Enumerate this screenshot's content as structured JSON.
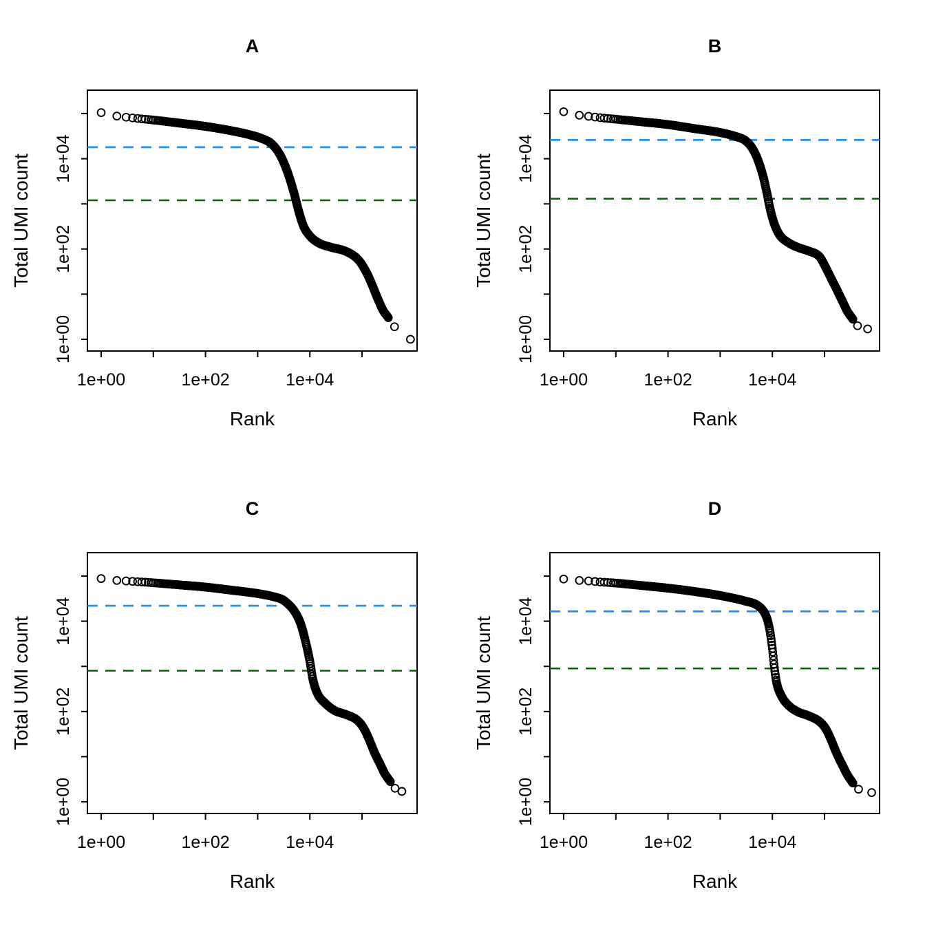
{
  "figure": {
    "background": "#ffffff",
    "marker": "open-circle",
    "marker_color": "#000000",
    "knee_color": "#1E90FF",
    "inflection_color": "#006400"
  },
  "chart_data": [
    {
      "type": "scatter",
      "title": "A",
      "xlabel": "Rank",
      "ylabel": "Total UMI count",
      "x_scale": "log",
      "y_scale": "log",
      "x_tick_labels": [
        "1e+00",
        "",
        "1e+02",
        "",
        "1e+04",
        ""
      ],
      "y_tick_labels": [
        "1e+00",
        "",
        "1e+02",
        "",
        "1e+04",
        ""
      ],
      "xlim": [
        1,
        1100000
      ],
      "ylim": [
        0.85,
        350000
      ],
      "knee": 18000,
      "inflection": 1200,
      "series": [
        {
          "name": "barcode-rank-curve",
          "points": [
            [
              1,
              105000
            ],
            [
              2,
              88000
            ],
            [
              3,
              83000
            ],
            [
              5,
              78000
            ],
            [
              10,
              72000
            ],
            [
              30,
              62000
            ],
            [
              100,
              52000
            ],
            [
              300,
              42000
            ],
            [
              700,
              34000
            ],
            [
              1200,
              28000
            ],
            [
              1800,
              22000
            ],
            [
              2500,
              14000
            ],
            [
              3200,
              8000
            ],
            [
              4000,
              4000
            ],
            [
              5000,
              1700
            ],
            [
              6000,
              750
            ],
            [
              7500,
              330
            ],
            [
              10000,
              195
            ],
            [
              15000,
              135
            ],
            [
              25000,
              110
            ],
            [
              50000,
              88
            ],
            [
              80000,
              62
            ],
            [
              100000,
              45
            ],
            [
              130000,
              26
            ],
            [
              160000,
              15
            ],
            [
              200000,
              8
            ],
            [
              250000,
              4.5
            ],
            [
              320000,
              3
            ]
          ]
        }
      ],
      "tail_points": [
        [
          420000,
          1.9
        ],
        [
          850000,
          1.0
        ]
      ]
    },
    {
      "type": "scatter",
      "title": "B",
      "xlabel": "Rank",
      "ylabel": "Total UMI count",
      "x_scale": "log",
      "y_scale": "log",
      "x_tick_labels": [
        "1e+00",
        "",
        "1e+02",
        "",
        "1e+04",
        ""
      ],
      "y_tick_labels": [
        "1e+00",
        "",
        "1e+02",
        "",
        "1e+04",
        ""
      ],
      "xlim": [
        1,
        1100000
      ],
      "ylim": [
        0.85,
        350000
      ],
      "knee": 26000,
      "inflection": 1300,
      "series": [
        {
          "name": "barcode-rank-curve",
          "points": [
            [
              1,
              110000
            ],
            [
              2,
              92000
            ],
            [
              3,
              87000
            ],
            [
              5,
              81000
            ],
            [
              10,
              75000
            ],
            [
              30,
              66000
            ],
            [
              100,
              57000
            ],
            [
              300,
              47000
            ],
            [
              1000,
              38000
            ],
            [
              2000,
              31000
            ],
            [
              3000,
              25500
            ],
            [
              4000,
              18000
            ],
            [
              5000,
              11000
            ],
            [
              6500,
              4500
            ],
            [
              8000,
              1600
            ],
            [
              9000,
              800
            ],
            [
              11000,
              350
            ],
            [
              14000,
              200
            ],
            [
              20000,
              140
            ],
            [
              30000,
              110
            ],
            [
              50000,
              90
            ],
            [
              80000,
              68
            ],
            [
              100000,
              44
            ],
            [
              130000,
              24
            ],
            [
              170000,
              13
            ],
            [
              220000,
              7
            ],
            [
              280000,
              4
            ],
            [
              350000,
              2.8
            ]
          ]
        }
      ],
      "tail_points": [
        [
          430000,
          2.0
        ],
        [
          670000,
          1.7
        ]
      ]
    },
    {
      "type": "scatter",
      "title": "C",
      "xlabel": "Rank",
      "ylabel": "Total UMI count",
      "x_scale": "log",
      "y_scale": "log",
      "x_tick_labels": [
        "1e+00",
        "",
        "1e+02",
        "",
        "1e+04",
        ""
      ],
      "y_tick_labels": [
        "1e+00",
        "",
        "1e+02",
        "",
        "1e+04",
        ""
      ],
      "xlim": [
        1,
        1100000
      ],
      "ylim": [
        0.85,
        350000
      ],
      "knee": 22000,
      "inflection": 800,
      "series": [
        {
          "name": "barcode-rank-curve",
          "points": [
            [
              1,
              88000
            ],
            [
              2,
              80000
            ],
            [
              3,
              78000
            ],
            [
              5,
              75000
            ],
            [
              10,
              71000
            ],
            [
              30,
              64000
            ],
            [
              100,
              57000
            ],
            [
              300,
              49000
            ],
            [
              1000,
              41000
            ],
            [
              2000,
              35000
            ],
            [
              3000,
              30000
            ],
            [
              3700,
              25000
            ],
            [
              5000,
              17000
            ],
            [
              6500,
              9500
            ],
            [
              8000,
              4200
            ],
            [
              10000,
              1300
            ],
            [
              11500,
              500
            ],
            [
              14000,
              250
            ],
            [
              20000,
              150
            ],
            [
              30000,
              105
            ],
            [
              50000,
              85
            ],
            [
              80000,
              65
            ],
            [
              105000,
              45
            ],
            [
              135000,
              25
            ],
            [
              170000,
              13
            ],
            [
              220000,
              7
            ],
            [
              280000,
              4
            ],
            [
              350000,
              2.8
            ]
          ]
        }
      ],
      "tail_points": [
        [
          430000,
          2.0
        ],
        [
          580000,
          1.7
        ]
      ]
    },
    {
      "type": "scatter",
      "title": "D",
      "xlabel": "Rank",
      "ylabel": "Total UMI count",
      "x_scale": "log",
      "y_scale": "log",
      "x_tick_labels": [
        "1e+00",
        "",
        "1e+02",
        "",
        "1e+04",
        ""
      ],
      "y_tick_labels": [
        "1e+00",
        "",
        "1e+02",
        "",
        "1e+04",
        ""
      ],
      "xlim": [
        1,
        1100000
      ],
      "ylim": [
        0.85,
        350000
      ],
      "knee": 16500,
      "inflection": 900,
      "series": [
        {
          "name": "barcode-rank-curve",
          "points": [
            [
              1,
              86000
            ],
            [
              2,
              80000
            ],
            [
              3,
              78000
            ],
            [
              5,
              74000
            ],
            [
              10,
              70000
            ],
            [
              30,
              62000
            ],
            [
              100,
              54000
            ],
            [
              300,
              46000
            ],
            [
              1000,
              37000
            ],
            [
              3000,
              28000
            ],
            [
              5000,
              23000
            ],
            [
              6800,
              16500
            ],
            [
              8000,
              11000
            ],
            [
              9000,
              6000
            ],
            [
              10000,
              2500
            ],
            [
              11000,
              900
            ],
            [
              12000,
              450
            ],
            [
              15000,
              220
            ],
            [
              20000,
              140
            ],
            [
              30000,
              100
            ],
            [
              50000,
              80
            ],
            [
              80000,
              60
            ],
            [
              105000,
              42
            ],
            [
              135000,
              23
            ],
            [
              170000,
              12
            ],
            [
              220000,
              6.5
            ],
            [
              280000,
              3.8
            ],
            [
              350000,
              2.6
            ]
          ]
        }
      ],
      "tail_points": [
        [
          450000,
          1.9
        ],
        [
          800000,
          1.6
        ]
      ]
    }
  ]
}
